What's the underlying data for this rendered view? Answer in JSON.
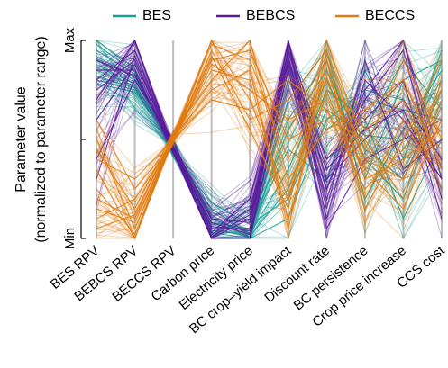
{
  "chart_data": {
    "type": "parallel-coordinates",
    "ylabel": "Parameter value",
    "ylabel_sub": "(normalized to parameter range)",
    "ytick_labels": {
      "max": "Max",
      "mid": "",
      "min": "Min"
    },
    "ylim": [
      0,
      1
    ],
    "legend_placement": "top",
    "axes": [
      "BES RPV",
      "BEBCS RPV",
      "BECCS RPV",
      "Carbon price",
      "Electricity price",
      "BC crop–yield impact",
      "Discount rate",
      "BC persistence",
      "Crop price increase",
      "CCS cost"
    ],
    "series": [
      {
        "name": "BES",
        "color": "#1b9e96",
        "lines": [
          [
            1.0,
            0.86,
            0.42,
            0.18,
            0.07,
            0.2,
            0.65,
            0.52,
            0.5,
            0.8
          ],
          [
            0.98,
            0.84,
            0.43,
            0.15,
            0.02,
            0.35,
            0.8,
            0.4,
            0.2,
            0.7
          ],
          [
            0.95,
            0.83,
            0.44,
            0.12,
            0.0,
            0.6,
            0.9,
            0.3,
            0.8,
            0.9
          ],
          [
            0.92,
            0.81,
            0.45,
            0.1,
            0.03,
            0.8,
            0.55,
            0.7,
            0.65,
            0.6
          ],
          [
            0.9,
            0.8,
            0.45,
            0.08,
            0.05,
            0.45,
            0.3,
            0.85,
            0.4,
            0.95
          ],
          [
            0.88,
            0.78,
            0.46,
            0.05,
            0.01,
            0.25,
            0.75,
            0.6,
            0.1,
            0.5
          ],
          [
            0.85,
            0.77,
            0.47,
            0.04,
            0.02,
            0.7,
            0.95,
            0.2,
            0.55,
            0.85
          ],
          [
            0.82,
            0.76,
            0.48,
            0.03,
            0.0,
            0.1,
            0.6,
            0.75,
            0.7,
            0.4
          ],
          [
            0.8,
            0.75,
            0.48,
            0.02,
            0.04,
            0.55,
            0.85,
            0.45,
            0.3,
            0.75
          ],
          [
            0.78,
            0.74,
            0.49,
            0.01,
            0.0,
            0.9,
            0.4,
            0.55,
            0.9,
            0.65
          ]
        ]
      },
      {
        "name": "BEBCS",
        "color": "#5b1a9c",
        "lines": [
          [
            0.8,
            0.95,
            0.45,
            0.0,
            0.1,
            0.95,
            0.3,
            0.5,
            0.7,
            0.4
          ],
          [
            0.75,
            0.9,
            0.46,
            0.05,
            0.05,
            1.0,
            0.1,
            0.8,
            0.6,
            0.3
          ],
          [
            0.7,
            1.0,
            0.47,
            0.02,
            0.15,
            0.9,
            0.25,
            0.7,
            0.95,
            0.2
          ],
          [
            0.85,
            0.85,
            0.44,
            0.08,
            0.02,
            0.85,
            0.05,
            0.4,
            0.5,
            0.6
          ],
          [
            0.4,
            0.8,
            0.48,
            0.03,
            0.2,
            0.98,
            0.4,
            0.6,
            0.8,
            0.1
          ],
          [
            0.6,
            0.88,
            0.45,
            0.1,
            0.08,
            0.92,
            0.15,
            0.9,
            0.35,
            0.5
          ],
          [
            0.3,
            0.92,
            0.46,
            0.01,
            0.12,
            0.88,
            0.2,
            0.75,
            1.0,
            0.3
          ],
          [
            0.9,
            0.82,
            0.47,
            0.06,
            0.04,
            0.96,
            0.35,
            0.55,
            0.65,
            0.25
          ]
        ]
      },
      {
        "name": "BECCS",
        "color": "#e07b12",
        "lines": [
          [
            0.35,
            0.0,
            0.52,
            1.0,
            0.7,
            0.2,
            0.85,
            0.3,
            0.4,
            0.55
          ],
          [
            0.2,
            0.1,
            0.5,
            0.9,
            0.95,
            0.5,
            0.6,
            0.5,
            0.2,
            0.8
          ],
          [
            0.5,
            0.05,
            0.51,
            0.85,
            0.8,
            0.1,
            0.75,
            0.2,
            0.6,
            0.45
          ],
          [
            0.1,
            0.2,
            0.49,
            0.95,
            0.6,
            0.7,
            0.95,
            0.4,
            0.3,
            0.7
          ],
          [
            0.45,
            0.15,
            0.53,
            0.8,
            1.0,
            0.3,
            0.55,
            0.65,
            0.8,
            0.35
          ],
          [
            0.25,
            0.02,
            0.5,
            0.75,
            0.85,
            0.05,
            0.9,
            0.15,
            0.5,
            0.9
          ],
          [
            0.6,
            0.25,
            0.48,
            0.88,
            0.75,
            0.6,
            0.7,
            0.35,
            0.15,
            0.6
          ],
          [
            0.15,
            0.08,
            0.52,
            0.98,
            0.9,
            0.4,
            0.8,
            0.55,
            0.7,
            0.25
          ],
          [
            0.4,
            0.3,
            0.51,
            0.7,
            0.65,
            0.8,
            0.65,
            0.25,
            0.45,
            0.75
          ],
          [
            0.05,
            0.12,
            0.5,
            0.92,
            0.55,
            0.15,
            1.0,
            0.45,
            0.9,
            0.5
          ]
        ]
      }
    ]
  }
}
